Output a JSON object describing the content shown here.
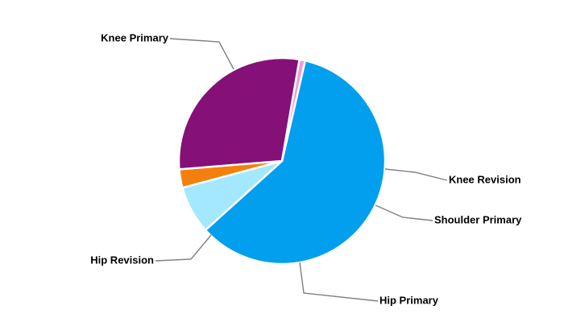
{
  "chart_data": {
    "type": "pie",
    "title": "",
    "start_angle_deg": 77,
    "slices": [
      {
        "label": "Knee Primary",
        "value": 59.7,
        "color": "#029fee"
      },
      {
        "label": "Knee Revision",
        "value": 7.5,
        "color": "#a3e8ff"
      },
      {
        "label": "Shoulder Primary",
        "value": 2.9,
        "color": "#f3800c"
      },
      {
        "label": "Hip Primary",
        "value": 29.0,
        "color": "#851077"
      },
      {
        "label": "Hip Revision",
        "value": 0.9,
        "color": "#ef9cd8"
      }
    ],
    "legend": "none",
    "labels": "outside with leader lines"
  }
}
